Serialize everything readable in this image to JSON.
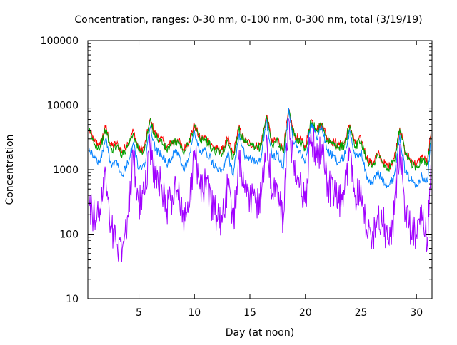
{
  "chart_data": {
    "type": "line",
    "title": "Concentration, ranges: 0-30 nm, 0-100 nm, 0-300 nm, total (3/19/19)",
    "xlabel": "Day (at noon)",
    "ylabel": "Concentration",
    "xlim": [
      0.4,
      31.4
    ],
    "ylim": [
      10,
      100000
    ],
    "yscale": "log",
    "grid": false,
    "x_ticks": [
      5,
      10,
      15,
      20,
      25,
      30
    ],
    "x_tick_labels": [
      "5",
      "10",
      "15",
      "20",
      "25",
      "30"
    ],
    "y_ticks": [
      10,
      100,
      1000,
      10000,
      100000
    ],
    "y_tick_labels": [
      "10",
      "100",
      "1000",
      "10000",
      "100000"
    ],
    "series": [
      {
        "color": "#ff0000",
        "x": [
          0.5,
          1.0,
          1.5,
          2.0,
          2.5,
          3.0,
          3.5,
          4.0,
          4.5,
          5.0,
          5.5,
          6.0,
          6.5,
          7.0,
          7.5,
          8.0,
          8.5,
          9.0,
          9.5,
          10.0,
          10.5,
          11.0,
          11.5,
          12.0,
          12.5,
          13.0,
          13.5,
          14.0,
          14.5,
          15.0,
          15.5,
          16.0,
          16.5,
          17.0,
          17.5,
          18.0,
          18.5,
          19.0,
          19.5,
          20.0,
          20.5,
          21.0,
          21.5,
          22.0,
          22.5,
          23.0,
          23.5,
          24.0,
          24.5,
          25.0,
          25.5,
          26.0,
          26.5,
          27.0,
          27.5,
          28.0,
          28.5,
          29.0,
          29.5,
          30.0,
          30.5,
          31.0,
          31.3
        ],
        "values": [
          4200,
          2700,
          2400,
          4600,
          2300,
          2500,
          1900,
          2600,
          4000,
          2000,
          2200,
          6000,
          3500,
          3000,
          2200,
          2700,
          3000,
          2000,
          2800,
          5000,
          3000,
          3200,
          2400,
          2100,
          2000,
          3000,
          1700,
          4500,
          2800,
          2600,
          2300,
          2500,
          7000,
          2600,
          3000,
          2000,
          8000,
          3500,
          3000,
          2200,
          6000,
          4200,
          5200,
          3000,
          2700,
          2400,
          2600,
          5000,
          2500,
          3000,
          1600,
          1200,
          1800,
          1300,
          1100,
          1500,
          4500,
          1800,
          1400,
          1200,
          1600,
          1300,
          3600
        ]
      },
      {
        "color": "#00a000",
        "x": [
          0.5,
          1.0,
          1.5,
          2.0,
          2.5,
          3.0,
          3.5,
          4.0,
          4.5,
          5.0,
          5.5,
          6.0,
          6.5,
          7.0,
          7.5,
          8.0,
          8.5,
          9.0,
          9.5,
          10.0,
          10.5,
          11.0,
          11.5,
          12.0,
          12.5,
          13.0,
          13.5,
          14.0,
          14.5,
          15.0,
          15.5,
          16.0,
          16.5,
          17.0,
          17.5,
          18.0,
          18.5,
          19.0,
          19.5,
          20.0,
          20.5,
          21.0,
          21.5,
          22.0,
          22.5,
          23.0,
          23.5,
          24.0,
          24.5,
          25.0,
          25.5,
          26.0,
          26.5,
          27.0,
          27.5,
          28.0,
          28.5,
          29.0,
          29.5,
          30.0,
          30.5,
          31.0,
          31.3
        ],
        "values": [
          4000,
          2500,
          2200,
          4200,
          2000,
          2300,
          1700,
          2400,
          3700,
          1900,
          2000,
          5700,
          3300,
          2800,
          2000,
          2500,
          2800,
          1800,
          2600,
          4800,
          2800,
          3000,
          2200,
          1900,
          1800,
          2800,
          1500,
          4200,
          2600,
          2400,
          2100,
          2300,
          6800,
          2400,
          2800,
          1800,
          7500,
          3300,
          2800,
          2000,
          5800,
          4000,
          5000,
          2800,
          2500,
          2200,
          2400,
          4800,
          2300,
          2800,
          1500,
          1100,
          1700,
          1200,
          1000,
          1400,
          4300,
          1700,
          1300,
          1100,
          1500,
          1200,
          3400
        ]
      },
      {
        "color": "#0080ff",
        "x": [
          0.5,
          1.0,
          1.5,
          2.0,
          2.5,
          3.0,
          3.5,
          4.0,
          4.5,
          5.0,
          5.5,
          6.0,
          6.5,
          7.0,
          7.5,
          8.0,
          8.5,
          9.0,
          9.5,
          10.0,
          10.5,
          11.0,
          11.5,
          12.0,
          12.5,
          13.0,
          13.5,
          14.0,
          14.5,
          15.0,
          15.5,
          16.0,
          16.5,
          17.0,
          17.5,
          18.0,
          18.5,
          19.0,
          19.5,
          20.0,
          20.5,
          21.0,
          21.5,
          22.0,
          22.5,
          23.0,
          23.5,
          24.0,
          24.5,
          25.0,
          25.5,
          26.0,
          26.5,
          27.0,
          27.5,
          28.0,
          28.5,
          29.0,
          29.5,
          30.0,
          30.5,
          31.0,
          31.3
        ],
        "values": [
          2200,
          1500,
          1300,
          3000,
          1200,
          1400,
          800,
          1300,
          2600,
          1000,
          1100,
          4500,
          2000,
          1800,
          1200,
          1600,
          1900,
          1000,
          1500,
          4000,
          1800,
          2000,
          1400,
          1100,
          1000,
          1800,
          800,
          3500,
          1700,
          1500,
          1300,
          1400,
          6000,
          1500,
          1800,
          1000,
          9000,
          2500,
          2000,
          1300,
          5500,
          3200,
          4500,
          1900,
          1600,
          1300,
          1600,
          4000,
          1500,
          1900,
          800,
          600,
          900,
          700,
          550,
          800,
          3500,
          900,
          700,
          600,
          800,
          650,
          3000
        ]
      },
      {
        "color": "#a000ff",
        "x": [
          0.5,
          1.0,
          1.5,
          2.0,
          2.5,
          3.0,
          3.5,
          4.0,
          4.5,
          5.0,
          5.5,
          6.0,
          6.5,
          7.0,
          7.5,
          8.0,
          8.5,
          9.0,
          9.5,
          10.0,
          10.5,
          11.0,
          11.5,
          12.0,
          12.5,
          13.0,
          13.5,
          14.0,
          14.5,
          15.0,
          15.5,
          16.0,
          16.5,
          17.0,
          17.5,
          18.0,
          18.5,
          19.0,
          19.5,
          20.0,
          20.5,
          21.0,
          21.5,
          22.0,
          22.5,
          23.0,
          23.5,
          24.0,
          24.5,
          25.0,
          25.5,
          26.0,
          26.5,
          27.0,
          27.5,
          28.0,
          28.5,
          29.0,
          29.5,
          30.0,
          30.5,
          31.0,
          31.3
        ],
        "values": [
          300,
          180,
          250,
          900,
          120,
          70,
          60,
          200,
          1500,
          300,
          400,
          2500,
          700,
          600,
          250,
          400,
          500,
          200,
          250,
          2000,
          500,
          600,
          300,
          200,
          150,
          600,
          120,
          1500,
          600,
          400,
          300,
          350,
          3500,
          400,
          500,
          150,
          6000,
          800,
          600,
          300,
          4000,
          1500,
          2500,
          600,
          400,
          300,
          400,
          2000,
          400,
          600,
          120,
          80,
          200,
          150,
          70,
          200,
          2500,
          180,
          120,
          100,
          160,
          90,
          1200
        ]
      }
    ]
  }
}
